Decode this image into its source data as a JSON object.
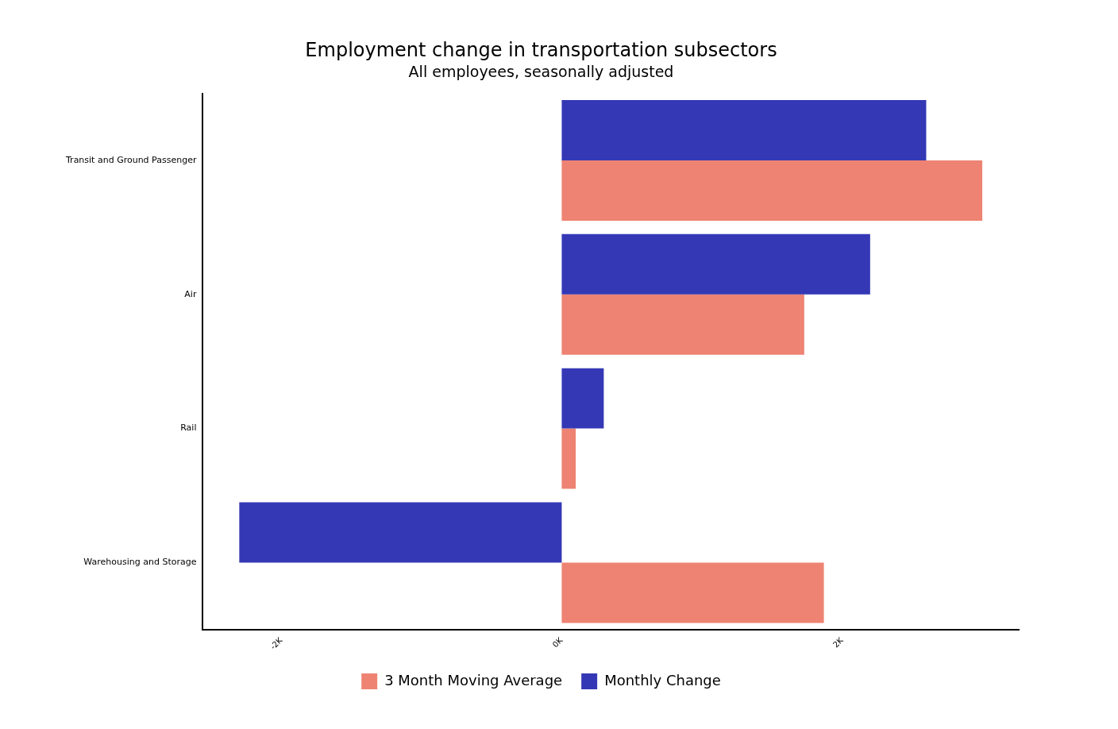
{
  "chart_data": {
    "type": "bar",
    "orientation": "horizontal",
    "title": "Employment change in transportation subsectors",
    "subtitle": "All employees, seasonally adjusted",
    "categories": [
      "Transit and Ground Passenger",
      "Air",
      "Rail",
      "Warehousing and Storage"
    ],
    "series": [
      {
        "name": "Monthly Change",
        "color": "#3538b5",
        "values": [
          2600,
          2200,
          300,
          -2300
        ]
      },
      {
        "name": "3 Month Moving Average",
        "color": "#ee8373",
        "values": [
          3000,
          1730,
          100,
          1870
        ]
      }
    ],
    "xlim": [
      -2560,
      3260
    ],
    "xticks": [
      {
        "value": -2000,
        "label": "-2K"
      },
      {
        "value": 0,
        "label": "0K"
      },
      {
        "value": 2000,
        "label": "2K"
      }
    ],
    "grid": false,
    "legend": "bottom"
  }
}
